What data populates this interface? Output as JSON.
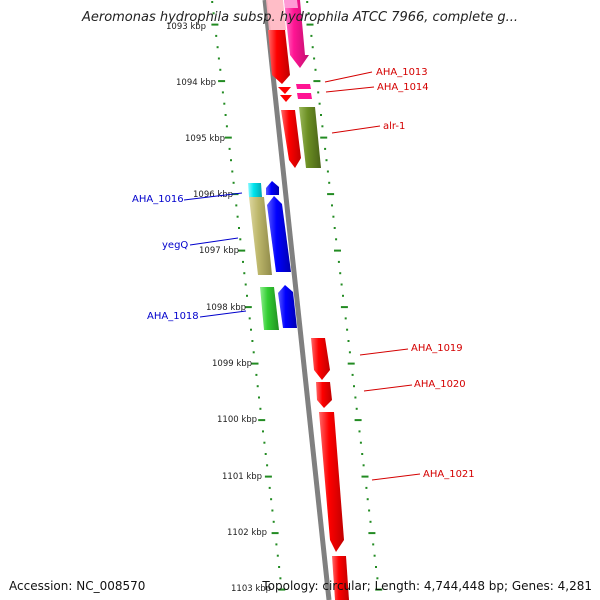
{
  "title": "Aeromonas hydrophila subsp. hydrophila ATCC 7966, complete g...",
  "footer": {
    "accession": "Accession: NC_008570",
    "stats": "Topology: circular; Length: 4,744,448 bp; Genes: 4,281"
  },
  "ruler_labels": [
    "1093 kbp",
    "1094 kbp",
    "1095 kbp",
    "1096 kbp",
    "1097 kbp",
    "1098 kbp",
    "1099 kbp",
    "1100 kbp",
    "1101 kbp",
    "1102 kbp",
    "1103 kbp"
  ],
  "forward_genes": [
    {
      "name": "AHA_1013",
      "color": "#ff1493",
      "label_color": "#d40000"
    },
    {
      "name": "AHA_1014",
      "color": "#ff1493",
      "label_color": "#d40000"
    },
    {
      "name": "alr-1",
      "color": "#6b8e23",
      "label_color": "#d40000"
    },
    {
      "name": "AHA_1019",
      "color": "#ff0000",
      "label_color": "#d40000"
    },
    {
      "name": "AHA_1020",
      "color": "#ff0000",
      "label_color": "#d40000"
    },
    {
      "name": "AHA_1021",
      "color": "#ff0000",
      "label_color": "#d40000"
    }
  ],
  "reverse_genes": [
    {
      "name": "AHA_1016",
      "color": "#00e5ee",
      "label_color": "#0000cc"
    },
    {
      "name": "yegQ",
      "color": "#bdb76b",
      "label_color": "#0000cc"
    },
    {
      "name": "AHA_1018",
      "color": "#32cd32",
      "label_color": "#0000cc"
    }
  ],
  "other_colors": {
    "rna_strand": "#ff0000",
    "cds_blue": "#0000ff",
    "backbone": "#808080",
    "tick": "#228b22"
  }
}
